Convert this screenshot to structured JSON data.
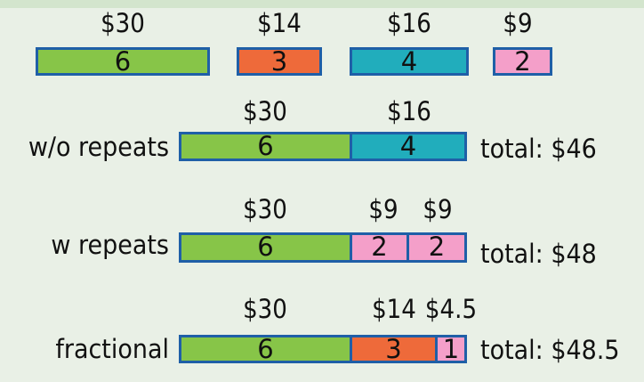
{
  "items": [
    {
      "price": "$30",
      "weight": "6",
      "color": "#87c548"
    },
    {
      "price": "$14",
      "weight": "3",
      "color": "#ee6a3a"
    },
    {
      "price": "$16",
      "weight": "4",
      "color": "#21adbc"
    },
    {
      "price": "$9",
      "weight": "2",
      "color": "#f49fc9"
    }
  ],
  "rows": {
    "without_repeats": {
      "label": "w/o repeats",
      "total": "total: $46",
      "prices": [
        "$30",
        "$16"
      ],
      "segments": [
        "6",
        "4"
      ]
    },
    "with_repeats": {
      "label": "w repeats",
      "total": "total: $48",
      "prices": [
        "$30",
        "$9",
        "$9"
      ],
      "segments": [
        "6",
        "2",
        "2"
      ]
    },
    "fractional": {
      "label": "fractional",
      "total": "total: $48.5",
      "prices": [
        "$30",
        "$14",
        "$4.5"
      ],
      "segments": [
        "6",
        "3",
        "1"
      ]
    }
  },
  "colors": {
    "border": "#1f5fa7",
    "background": "#e9f0e6",
    "green": "#87c548",
    "orange": "#ee6a3a",
    "teal": "#21adbc",
    "pink": "#f49fc9"
  }
}
